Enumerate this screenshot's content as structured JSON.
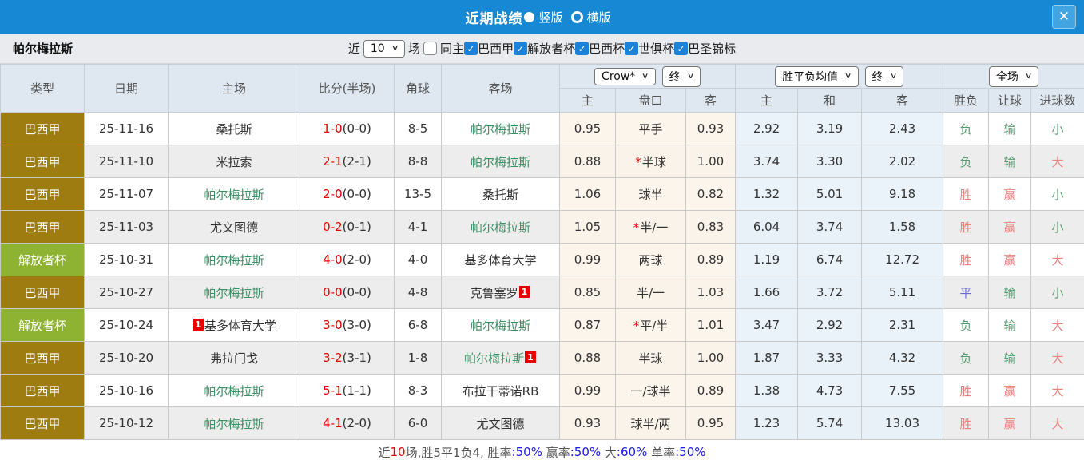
{
  "titlebar": {
    "title": "近期战绩",
    "radio_options": [
      {
        "label": "竖版",
        "selected": true
      },
      {
        "label": "横版",
        "selected": false
      }
    ],
    "close_label": "✕"
  },
  "filterbar": {
    "team": "帕尔梅拉斯",
    "near_label": "近",
    "match_count": "10",
    "games_label": "场",
    "same_home": {
      "label": "同主",
      "checked": false
    },
    "leagues": [
      {
        "label": "巴西甲",
        "checked": true
      },
      {
        "label": "解放者杯",
        "checked": true
      },
      {
        "label": "巴西杯",
        "checked": true
      },
      {
        "label": "世俱杯",
        "checked": true
      },
      {
        "label": "巴圣锦标",
        "checked": true
      }
    ]
  },
  "table": {
    "main_headers": [
      "类型",
      "日期",
      "主场",
      "比分(半场)",
      "角球",
      "客场"
    ],
    "dropdowns": {
      "company": "Crow*",
      "company_state": "终",
      "average": "胜平负均值",
      "average_state": "终",
      "scope": "全场"
    },
    "sub_headers": [
      "主",
      "盘口",
      "客",
      "主",
      "和",
      "客",
      "胜负",
      "让球",
      "进球数"
    ],
    "rows": [
      {
        "type": "巴西甲",
        "type_color": "gold",
        "date": "25-11-16",
        "home": "桑托斯",
        "home_green": false,
        "home_badge_before": "",
        "home_badge_after": "",
        "score": "1-0",
        "half": "(0-0)",
        "corners": "8-5",
        "away": "帕尔梅拉斯",
        "away_green": true,
        "away_badge_before": "",
        "away_badge_after": "",
        "odds_home": "0.95",
        "handicap_star": false,
        "handicap": "平手",
        "odds_away": "0.93",
        "avg_home": "2.92",
        "avg_draw": "3.19",
        "avg_away": "2.43",
        "result": "负",
        "result_color": "green",
        "handicap_result": "输",
        "handicap_result_color": "green",
        "goals": "小",
        "goals_color": "green"
      },
      {
        "type": "巴西甲",
        "type_color": "gold",
        "date": "25-11-10",
        "home": "米拉索",
        "home_green": false,
        "home_badge_before": "",
        "home_badge_after": "",
        "score": "2-1",
        "half": "(2-1)",
        "corners": "8-8",
        "away": "帕尔梅拉斯",
        "away_green": true,
        "away_badge_before": "",
        "away_badge_after": "",
        "odds_home": "0.88",
        "handicap_star": true,
        "handicap": "半球",
        "odds_away": "1.00",
        "avg_home": "3.74",
        "avg_draw": "3.30",
        "avg_away": "2.02",
        "result": "负",
        "result_color": "green",
        "handicap_result": "输",
        "handicap_result_color": "green",
        "goals": "大",
        "goals_color": "red"
      },
      {
        "type": "巴西甲",
        "type_color": "gold",
        "date": "25-11-07",
        "home": "帕尔梅拉斯",
        "home_green": true,
        "home_badge_before": "",
        "home_badge_after": "",
        "score": "2-0",
        "half": "(0-0)",
        "corners": "13-5",
        "away": "桑托斯",
        "away_green": false,
        "away_badge_before": "",
        "away_badge_after": "",
        "odds_home": "1.06",
        "handicap_star": false,
        "handicap": "球半",
        "odds_away": "0.82",
        "avg_home": "1.32",
        "avg_draw": "5.01",
        "avg_away": "9.18",
        "result": "胜",
        "result_color": "red",
        "handicap_result": "赢",
        "handicap_result_color": "red",
        "goals": "小",
        "goals_color": "green"
      },
      {
        "type": "巴西甲",
        "type_color": "gold",
        "date": "25-11-03",
        "home": "尤文图德",
        "home_green": false,
        "home_badge_before": "",
        "home_badge_after": "",
        "score": "0-2",
        "half": "(0-1)",
        "corners": "4-1",
        "away": "帕尔梅拉斯",
        "away_green": true,
        "away_badge_before": "",
        "away_badge_after": "",
        "odds_home": "1.05",
        "handicap_star": true,
        "handicap": "半/一",
        "odds_away": "0.83",
        "avg_home": "6.04",
        "avg_draw": "3.74",
        "avg_away": "1.58",
        "result": "胜",
        "result_color": "red",
        "handicap_result": "赢",
        "handicap_result_color": "red",
        "goals": "小",
        "goals_color": "green"
      },
      {
        "type": "解放者杯",
        "type_color": "green",
        "date": "25-10-31",
        "home": "帕尔梅拉斯",
        "home_green": true,
        "home_badge_before": "",
        "home_badge_after": "",
        "score": "4-0",
        "half": "(2-0)",
        "corners": "4-0",
        "away": "基多体育大学",
        "away_green": false,
        "away_badge_before": "",
        "away_badge_after": "",
        "odds_home": "0.99",
        "handicap_star": false,
        "handicap": "两球",
        "odds_away": "0.89",
        "avg_home": "1.19",
        "avg_draw": "6.74",
        "avg_away": "12.72",
        "result": "胜",
        "result_color": "red",
        "handicap_result": "赢",
        "handicap_result_color": "red",
        "goals": "大",
        "goals_color": "red"
      },
      {
        "type": "巴西甲",
        "type_color": "gold",
        "date": "25-10-27",
        "home": "帕尔梅拉斯",
        "home_green": true,
        "home_badge_before": "",
        "home_badge_after": "",
        "score": "0-0",
        "half": "(0-0)",
        "corners": "4-8",
        "away": "克鲁塞罗",
        "away_green": false,
        "away_badge_before": "",
        "away_badge_after": "1",
        "odds_home": "0.85",
        "handicap_star": false,
        "handicap": "半/一",
        "odds_away": "1.03",
        "avg_home": "1.66",
        "avg_draw": "3.72",
        "avg_away": "5.11",
        "result": "平",
        "result_color": "blue",
        "handicap_result": "输",
        "handicap_result_color": "green",
        "goals": "小",
        "goals_color": "green"
      },
      {
        "type": "解放者杯",
        "type_color": "green",
        "date": "25-10-24",
        "home": "基多体育大学",
        "home_green": false,
        "home_badge_before": "1",
        "home_badge_after": "",
        "score": "3-0",
        "half": "(3-0)",
        "corners": "6-8",
        "away": "帕尔梅拉斯",
        "away_green": true,
        "away_badge_before": "",
        "away_badge_after": "",
        "odds_home": "0.87",
        "handicap_star": true,
        "handicap": "平/半",
        "odds_away": "1.01",
        "avg_home": "3.47",
        "avg_draw": "2.92",
        "avg_away": "2.31",
        "result": "负",
        "result_color": "green",
        "handicap_result": "输",
        "handicap_result_color": "green",
        "goals": "大",
        "goals_color": "red"
      },
      {
        "type": "巴西甲",
        "type_color": "gold",
        "date": "25-10-20",
        "home": "弗拉门戈",
        "home_green": false,
        "home_badge_before": "",
        "home_badge_after": "",
        "score": "3-2",
        "half": "(3-1)",
        "corners": "1-8",
        "away": "帕尔梅拉斯",
        "away_green": true,
        "away_badge_before": "",
        "away_badge_after": "1",
        "odds_home": "0.88",
        "handicap_star": false,
        "handicap": "半球",
        "odds_away": "1.00",
        "avg_home": "1.87",
        "avg_draw": "3.33",
        "avg_away": "4.32",
        "result": "负",
        "result_color": "green",
        "handicap_result": "输",
        "handicap_result_color": "green",
        "goals": "大",
        "goals_color": "red"
      },
      {
        "type": "巴西甲",
        "type_color": "gold",
        "date": "25-10-16",
        "home": "帕尔梅拉斯",
        "home_green": true,
        "home_badge_before": "",
        "home_badge_after": "",
        "score": "5-1",
        "half": "(1-1)",
        "corners": "8-3",
        "away": "布拉干蒂诺RB",
        "away_green": false,
        "away_badge_before": "",
        "away_badge_after": "",
        "odds_home": "0.99",
        "handicap_star": false,
        "handicap": "一/球半",
        "odds_away": "0.89",
        "avg_home": "1.38",
        "avg_draw": "4.73",
        "avg_away": "7.55",
        "result": "胜",
        "result_color": "red",
        "handicap_result": "赢",
        "handicap_result_color": "red",
        "goals": "大",
        "goals_color": "red"
      },
      {
        "type": "巴西甲",
        "type_color": "gold",
        "date": "25-10-12",
        "home": "帕尔梅拉斯",
        "home_green": true,
        "home_badge_before": "",
        "home_badge_after": "",
        "score": "4-1",
        "half": "(2-0)",
        "corners": "6-0",
        "away": "尤文图德",
        "away_green": false,
        "away_badge_before": "",
        "away_badge_after": "",
        "odds_home": "0.93",
        "handicap_star": false,
        "handicap": "球半/两",
        "odds_away": "0.95",
        "avg_home": "1.23",
        "avg_draw": "5.74",
        "avg_away": "13.03",
        "result": "胜",
        "result_color": "red",
        "handicap_result": "赢",
        "handicap_result_color": "red",
        "goals": "大",
        "goals_color": "red"
      }
    ]
  },
  "summary": {
    "segments": [
      {
        "text": "近",
        "color": "dark"
      },
      {
        "text": "10",
        "color": "red"
      },
      {
        "text": "场,胜5平1负4, ",
        "color": "dark"
      },
      {
        "text": "胜率",
        "color": "dark"
      },
      {
        "text": ":50%",
        "color": "blue"
      },
      {
        "text": " 赢率",
        "color": "dark"
      },
      {
        "text": ":50%",
        "color": "blue"
      },
      {
        "text": " 大",
        "color": "dark"
      },
      {
        "text": ":60%",
        "color": "blue"
      },
      {
        "text": " 单率",
        "color": "dark"
      },
      {
        "text": ":50%",
        "color": "blue"
      }
    ]
  },
  "colors": {
    "header_blue": "#1789d4",
    "league_gold": "#9e7c10",
    "league_green": "#8eb232",
    "team_green": "#3c9064",
    "score_red": "#e60000",
    "win_red": "#e9827e",
    "lose_green": "#55996f",
    "draw_blue": "#6b6bd8",
    "percent_blue": "#1a1ae6"
  }
}
